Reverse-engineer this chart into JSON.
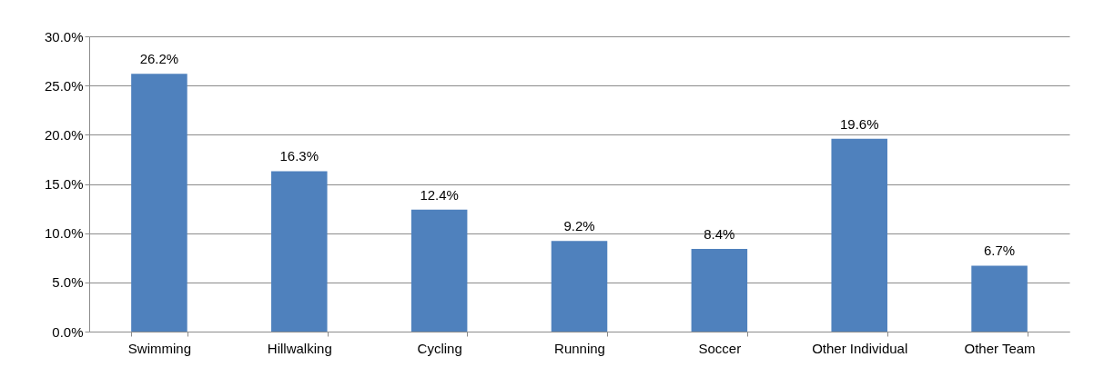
{
  "chart_data": {
    "type": "bar",
    "categories": [
      "Swimming",
      "Hillwalking",
      "Cycling",
      "Running",
      "Soccer",
      "Other Individual",
      "Other Team"
    ],
    "values": [
      26.2,
      16.3,
      12.4,
      9.2,
      8.4,
      19.6,
      6.7
    ],
    "value_labels": [
      "26.2%",
      "16.3%",
      "12.4%",
      "9.2%",
      "8.4%",
      "19.6%",
      "6.7%"
    ],
    "color": "#4f81bd",
    "ylim": [
      0,
      30
    ],
    "yticks": [
      {
        "value": 0,
        "label": "0.0%"
      },
      {
        "value": 5,
        "label": "5.0%"
      },
      {
        "value": 10,
        "label": "10.0%"
      },
      {
        "value": 15,
        "label": "15.0%"
      },
      {
        "value": 20,
        "label": "20.0%"
      },
      {
        "value": 25,
        "label": "25.0%"
      },
      {
        "value": 30,
        "label": "30.0%"
      }
    ],
    "grid": "y"
  }
}
